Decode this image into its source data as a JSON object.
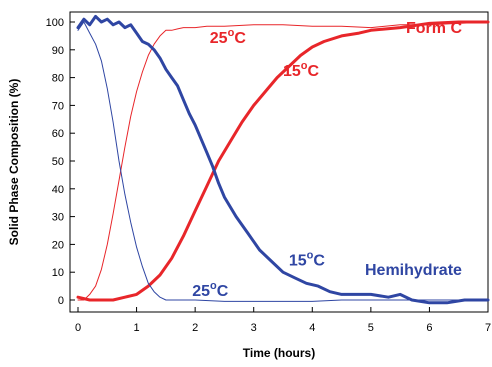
{
  "chart_data": {
    "type": "line",
    "xlabel": "Time (hours)",
    "ylabel": "Solid Phase Composition (%)",
    "xlim": [
      0,
      7
    ],
    "ylim": [
      0,
      100
    ],
    "xticks": [
      0,
      1,
      2,
      3,
      4,
      5,
      6,
      7
    ],
    "yticks": [
      0,
      10,
      20,
      30,
      40,
      50,
      60,
      70,
      80,
      90,
      100
    ],
    "grid": false,
    "legend": "none",
    "colors": {
      "form_c": "#e8262a",
      "hemihydrate": "#2f46a3"
    },
    "series": [
      {
        "key": "formc25",
        "color": "#e8262a",
        "weight": "thin",
        "x": [
          0,
          0.1,
          0.2,
          0.3,
          0.4,
          0.5,
          0.6,
          0.7,
          0.8,
          0.9,
          1.0,
          1.1,
          1.2,
          1.3,
          1.4,
          1.5,
          1.6,
          1.7,
          1.8,
          1.9,
          2.0,
          2.2,
          2.5,
          3.0,
          3.5,
          4.0,
          4.5,
          5.0,
          5.5,
          6.0,
          6.5,
          7.0
        ],
        "y": [
          0,
          0,
          2,
          5,
          11,
          20,
          31,
          43,
          55,
          66,
          75,
          82,
          88,
          92,
          95,
          97,
          97,
          97.5,
          98,
          98,
          98,
          98.5,
          98.5,
          99,
          99,
          98.5,
          98.5,
          98,
          99,
          99,
          99.5,
          100
        ]
      },
      {
        "key": "formc15",
        "color": "#e8262a",
        "weight": "thick",
        "x": [
          0,
          0.2,
          0.4,
          0.6,
          0.8,
          1.0,
          1.2,
          1.4,
          1.6,
          1.8,
          2.0,
          2.2,
          2.4,
          2.6,
          2.8,
          3.0,
          3.2,
          3.4,
          3.6,
          3.8,
          4.0,
          4.2,
          4.5,
          4.8,
          5.0,
          5.5,
          6.0,
          6.5,
          7.0
        ],
        "y": [
          1,
          0,
          0,
          0,
          1,
          2,
          5,
          9,
          15,
          23,
          32,
          41,
          50,
          57,
          64,
          70,
          75,
          80,
          84,
          88,
          91,
          93,
          95,
          96,
          97,
          98,
          99.5,
          100,
          100
        ]
      },
      {
        "key": "hemi25",
        "color": "#2f46a3",
        "weight": "thin",
        "x": [
          0,
          0.1,
          0.2,
          0.3,
          0.4,
          0.5,
          0.6,
          0.7,
          0.8,
          0.9,
          1.0,
          1.1,
          1.2,
          1.3,
          1.4,
          1.5,
          1.6,
          1.8,
          2.0,
          2.5,
          3.0,
          3.5,
          4.0,
          4.5,
          5.0,
          5.5,
          6.0,
          6.5,
          7.0
        ],
        "y": [
          97,
          100,
          96,
          92,
          86,
          76,
          64,
          50,
          38,
          28,
          19,
          12,
          6,
          3,
          1,
          0,
          0,
          0,
          0,
          -0.5,
          -0.5,
          -0.5,
          -0.5,
          0,
          0,
          0,
          0,
          0,
          0
        ]
      },
      {
        "key": "hemi15",
        "color": "#2f46a3",
        "weight": "thick",
        "x": [
          0,
          0.1,
          0.2,
          0.3,
          0.4,
          0.5,
          0.6,
          0.7,
          0.8,
          0.9,
          1.0,
          1.1,
          1.2,
          1.3,
          1.4,
          1.5,
          1.6,
          1.7,
          1.8,
          1.9,
          2.0,
          2.1,
          2.2,
          2.3,
          2.4,
          2.5,
          2.7,
          2.9,
          3.1,
          3.3,
          3.5,
          3.7,
          3.9,
          4.1,
          4.3,
          4.5,
          4.7,
          5.0,
          5.3,
          5.5,
          5.7,
          6.0,
          6.3,
          6.6,
          7.0
        ],
        "y": [
          98,
          101,
          99,
          102,
          100,
          101,
          99,
          100,
          98,
          99,
          96,
          93,
          92,
          90,
          87,
          83,
          80,
          77,
          72,
          67,
          63,
          58,
          53,
          48,
          42,
          37,
          30,
          24,
          18,
          14,
          10,
          8,
          6,
          5,
          3,
          2,
          2,
          2,
          1,
          2,
          0,
          -1,
          -1,
          0,
          0
        ]
      }
    ],
    "annotations": [
      {
        "key": "lbl_formc",
        "text": "Form C",
        "x": 5.6,
        "y": 96,
        "color": "#e8262a"
      },
      {
        "key": "lbl_r25",
        "text": "25",
        "deg": "o",
        "unit": "C",
        "x": 2.25,
        "y": 92.5,
        "color": "#e8262a"
      },
      {
        "key": "lbl_r15",
        "text": "15",
        "deg": "o",
        "unit": "C",
        "x": 3.5,
        "y": 80.5,
        "color": "#e8262a"
      },
      {
        "key": "lbl_b15",
        "text": "15",
        "deg": "o",
        "unit": "C",
        "x": 3.6,
        "y": 12.5,
        "color": "#2f46a3"
      },
      {
        "key": "lbl_b25",
        "text": "25",
        "deg": "o",
        "unit": "C",
        "x": 1.95,
        "y": 1.5,
        "color": "#2f46a3"
      },
      {
        "key": "lbl_hemi",
        "text": "Hemihydrate",
        "x": 4.9,
        "y": 9,
        "color": "#2f46a3"
      }
    ]
  }
}
